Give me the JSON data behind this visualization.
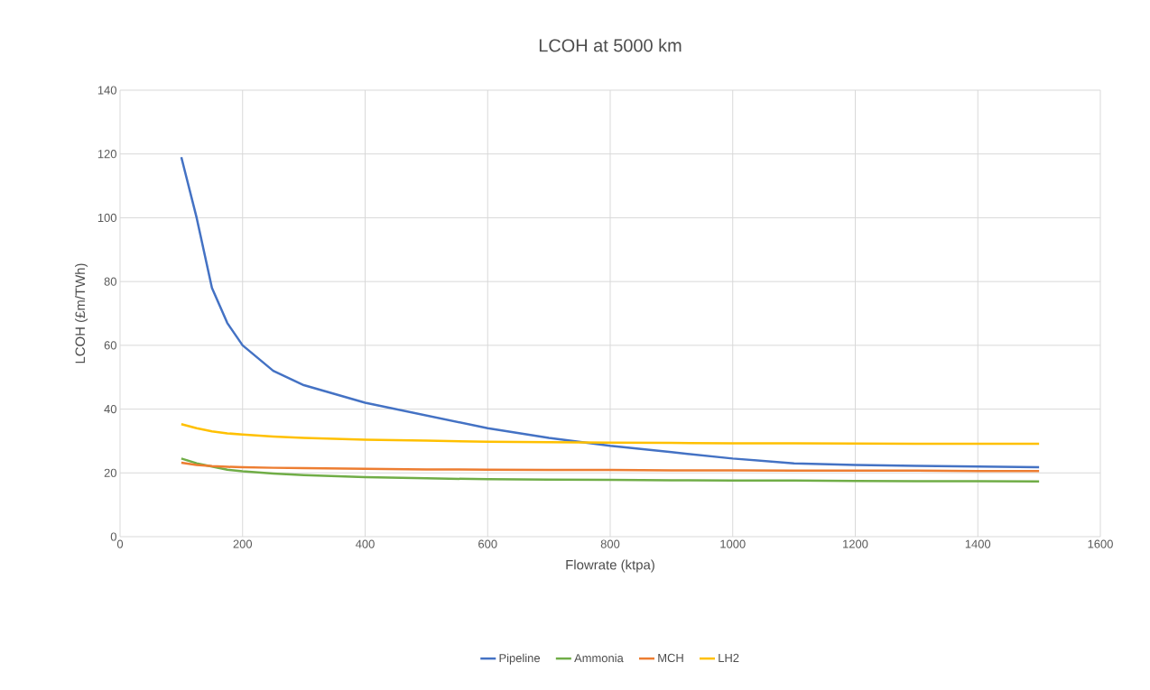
{
  "chart_data": {
    "type": "line",
    "title": "LCOH at 5000 km",
    "xlabel": "Flowrate (ktpa)",
    "ylabel": "LCOH (£m/TWh)",
    "x": [
      100,
      125,
      150,
      175,
      200,
      250,
      300,
      400,
      500,
      600,
      700,
      800,
      900,
      1000,
      1100,
      1200,
      1300,
      1400,
      1500
    ],
    "series": [
      {
        "name": "Pipeline",
        "color": "#4472c4",
        "values": [
          119,
          100,
          78,
          67,
          60,
          52,
          47.5,
          42,
          38,
          34,
          31,
          28.5,
          26.5,
          24.5,
          23,
          22.5,
          22.2,
          22,
          21.8
        ]
      },
      {
        "name": "Ammonia",
        "color": "#70ad47",
        "values": [
          24.5,
          23,
          22,
          21,
          20.5,
          19.8,
          19.3,
          18.7,
          18.3,
          18,
          17.9,
          17.8,
          17.7,
          17.6,
          17.6,
          17.5,
          17.4,
          17.4,
          17.3
        ]
      },
      {
        "name": "MCH",
        "color": "#ed7d31",
        "values": [
          23.2,
          22.5,
          22.1,
          21.9,
          21.8,
          21.6,
          21.5,
          21.3,
          21.1,
          21,
          20.9,
          20.9,
          20.8,
          20.8,
          20.7,
          20.7,
          20.7,
          20.6,
          20.6
        ]
      },
      {
        "name": "LH2",
        "color": "#ffc000",
        "values": [
          35.3,
          34,
          33,
          32.4,
          32,
          31.4,
          31,
          30.4,
          30.1,
          29.8,
          29.6,
          29.5,
          29.4,
          29.3,
          29.3,
          29.2,
          29.1,
          29.1,
          29.1
        ]
      }
    ],
    "xlim": [
      0,
      1600
    ],
    "ylim": [
      0,
      140
    ],
    "xticks": [
      0,
      200,
      400,
      600,
      800,
      1000,
      1200,
      1400,
      1600
    ],
    "yticks": [
      0,
      20,
      40,
      60,
      80,
      100,
      120,
      140
    ],
    "grid": true,
    "legend": "bottom"
  }
}
